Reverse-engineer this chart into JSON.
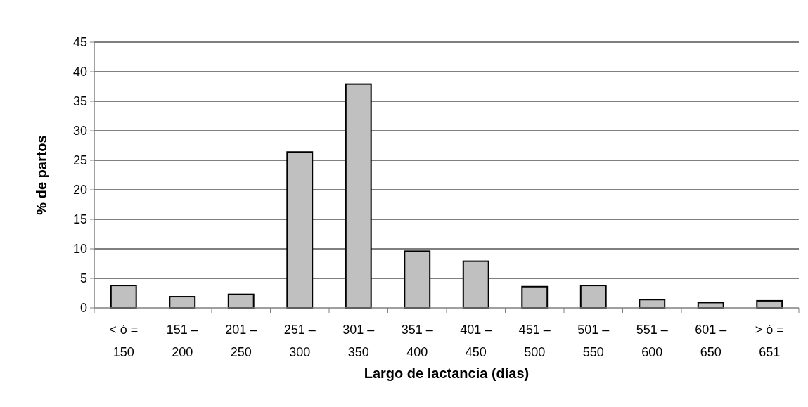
{
  "chart_data": {
    "type": "bar",
    "xlabel": "Largo de lactancia (días)",
    "ylabel": "% de partos",
    "categories": [
      "< ó = 150",
      "151 – 200",
      "201 – 250",
      "251 – 300",
      "301 – 350",
      "351 – 400",
      "401 – 450",
      "451 – 500",
      "501 – 550",
      "551 – 600",
      "601 – 650",
      "> ó = 651"
    ],
    "values": [
      3.8,
      1.9,
      2.3,
      26.4,
      37.9,
      9.6,
      7.9,
      3.6,
      3.8,
      1.4,
      0.9,
      1.2
    ],
    "color": "#c0c0c0",
    "ylim": [
      0,
      45
    ],
    "yticks": [
      0,
      5,
      10,
      15,
      20,
      25,
      30,
      35,
      40,
      45
    ],
    "grid": "y"
  }
}
